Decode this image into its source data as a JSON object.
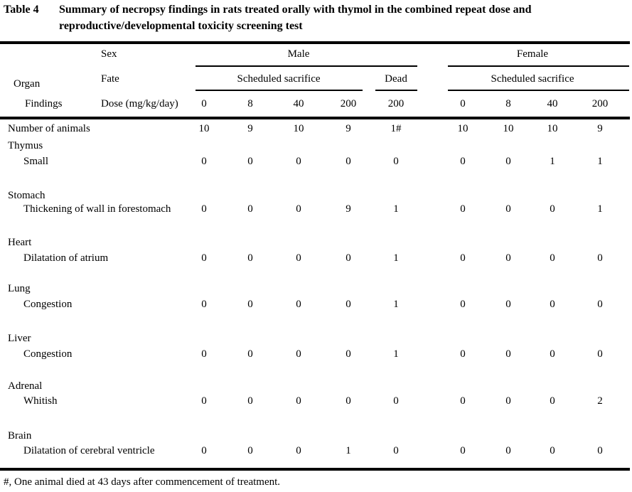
{
  "caption": {
    "label": "Table 4",
    "text": "Summary of necropsy findings in rats treated orally with thymol in the combined repeat dose and\nreproductive/developmental toxicity screening test"
  },
  "header": {
    "sex_label": "Sex",
    "fate_label": "Fate",
    "organ_label": "Organ",
    "findings_label": "Findings",
    "dose_label": "Dose (mg/kg/day)",
    "male": "Male",
    "female": "Female",
    "scheduled_sacrifice": "Scheduled sacrifice",
    "dead": "Dead",
    "doses": [
      "0",
      "8",
      "40",
      "200",
      "200",
      "0",
      "8",
      "40",
      "200"
    ]
  },
  "table": {
    "rows": [
      {
        "type": "data",
        "label": "Number of animals",
        "indent": 0,
        "values": [
          "10",
          "9",
          "10",
          "9",
          "1#",
          "10",
          "10",
          "10",
          "9"
        ]
      },
      {
        "type": "organ",
        "label": "Thymus"
      },
      {
        "type": "data",
        "label": "Small",
        "indent": 1,
        "values": [
          "0",
          "0",
          "0",
          "0",
          "0",
          "0",
          "0",
          "1",
          "1"
        ]
      },
      {
        "type": "organ",
        "label": "Stomach"
      },
      {
        "type": "data",
        "label": "Thickening of wall in forestomach",
        "indent": 1,
        "values": [
          "0",
          "0",
          "0",
          "9",
          "1",
          "0",
          "0",
          "0",
          "1"
        ]
      },
      {
        "type": "organ",
        "label": "Heart"
      },
      {
        "type": "data",
        "label": "Dilatation of atrium",
        "indent": 1,
        "values": [
          "0",
          "0",
          "0",
          "0",
          "1",
          "0",
          "0",
          "0",
          "0"
        ]
      },
      {
        "type": "organ",
        "label": "Lung"
      },
      {
        "type": "data",
        "label": "Congestion",
        "indent": 1,
        "values": [
          "0",
          "0",
          "0",
          "0",
          "1",
          "0",
          "0",
          "0",
          "0"
        ]
      },
      {
        "type": "organ",
        "label": "Liver"
      },
      {
        "type": "data",
        "label": "Congestion",
        "indent": 1,
        "values": [
          "0",
          "0",
          "0",
          "0",
          "1",
          "0",
          "0",
          "0",
          "0"
        ]
      },
      {
        "type": "organ",
        "label": "Adrenal"
      },
      {
        "type": "data",
        "label": "Whitish",
        "indent": 1,
        "values": [
          "0",
          "0",
          "0",
          "0",
          "0",
          "0",
          "0",
          "0",
          "2"
        ]
      },
      {
        "type": "organ",
        "label": "Brain"
      },
      {
        "type": "data",
        "label": "Dilatation of cerebral ventricle",
        "indent": 1,
        "values": [
          "0",
          "0",
          "0",
          "1",
          "0",
          "0",
          "0",
          "0",
          "0"
        ]
      }
    ]
  },
  "footnote": "#, One animal died at 43 days after commencement of treatment.",
  "colors": {
    "text": "#000000",
    "background": "#ffffff",
    "rule": "#000000"
  }
}
